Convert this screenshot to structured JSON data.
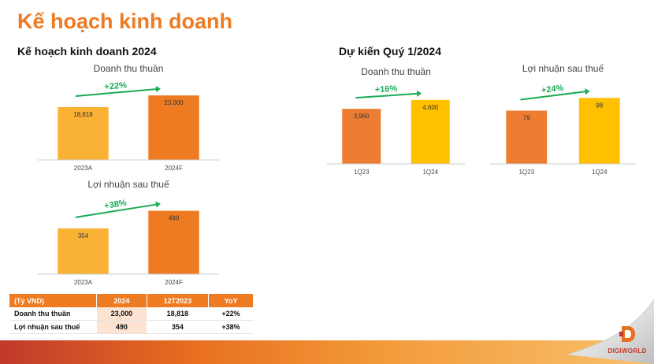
{
  "page": {
    "title": "Kế hoạch kinh doanh"
  },
  "sections": {
    "plan_2024": "Kế hoạch kinh doanh 2024",
    "q1_2024": "Dự kiến Quý 1/2024"
  },
  "chart_data": [
    {
      "type": "bar",
      "title": "Doanh thu thuần",
      "categories": [
        "2023A",
        "2024F"
      ],
      "values": [
        18818,
        23000
      ],
      "labels": [
        "18,818",
        "23,000"
      ],
      "colors": [
        "#f9b233",
        "#ee7a22"
      ],
      "growth": "+22%",
      "ylim": [
        0,
        25000
      ]
    },
    {
      "type": "bar",
      "title": "Lợi nhuận sau thuế",
      "categories": [
        "2023A",
        "2024F"
      ],
      "values": [
        354,
        490
      ],
      "labels": [
        "354",
        "490"
      ],
      "colors": [
        "#f9b233",
        "#ee7a22"
      ],
      "growth": "+38%",
      "ylim": [
        0,
        530
      ]
    },
    {
      "type": "bar",
      "title": "Doanh thu thuần",
      "categories": [
        "1Q23",
        "1Q24"
      ],
      "values": [
        3960,
        4600
      ],
      "labels": [
        "3,960",
        "4,600"
      ],
      "colors": [
        "#ed7d31",
        "#ffc000"
      ],
      "growth": "+16%",
      "ylim": [
        0,
        5100
      ]
    },
    {
      "type": "bar",
      "title": "Lợi nhuận sau thuế",
      "categories": [
        "1Q23",
        "1Q24"
      ],
      "values": [
        79,
        98
      ],
      "labels": [
        "79",
        "98"
      ],
      "colors": [
        "#ed7d31",
        "#ffc000"
      ],
      "growth": "+24%",
      "ylim": [
        0,
        110
      ]
    }
  ],
  "table": {
    "headers": [
      "(Tỷ VND)",
      "2024",
      "12T2023",
      "YoY"
    ],
    "rows": [
      [
        "Doanh thu thuần",
        "23,000",
        "18,818",
        "+22%"
      ],
      [
        "Lợi nhuận sau thuế",
        "490",
        "354",
        "+38%"
      ]
    ]
  },
  "logo": {
    "text": "DIGIWORLD"
  },
  "colors": {
    "accent": "#ee7a22",
    "arrow": "#1aaa55"
  }
}
